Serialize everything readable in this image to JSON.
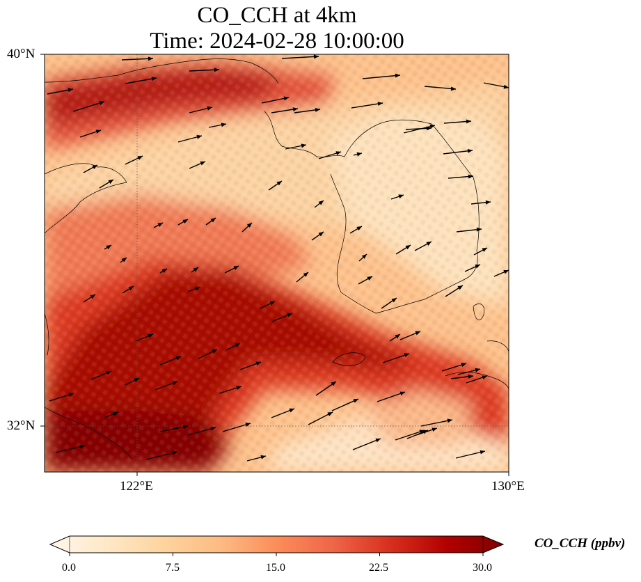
{
  "title": {
    "line1": "CO_CCH at 4km",
    "line2": "Time: 2024-02-28 10:00:00"
  },
  "map": {
    "extent": {
      "lon_min": 118,
      "lon_max": 130,
      "lat_min": 30.8,
      "lat_max": 40
    },
    "lat_ticks": [
      {
        "lat": 40,
        "label": "40°N"
      },
      {
        "lat": 32,
        "label": "32°N"
      }
    ],
    "lon_ticks": [
      {
        "lon": 122,
        "label": "122°E"
      },
      {
        "lon": 130,
        "label": "130°E"
      }
    ],
    "gridlines": "dotted at labelled ticks",
    "field": "CO_CCH concentration (ppbv)",
    "field_features": [
      {
        "name": "high band from southwest to southeast",
        "level": "high"
      },
      {
        "name": "northern band over Bohai region",
        "level": "high"
      },
      {
        "name": "Korean peninsula interior",
        "level": "low"
      }
    ],
    "wind_vectors": "arrows pointing predominantly east to northeast"
  },
  "colorbar": {
    "label": "CO_CCH (ppbv)",
    "min": 0.0,
    "max": 30.0,
    "extend": "both",
    "ticks": [
      "0.0",
      "7.5",
      "15.0",
      "22.5",
      "30.0"
    ],
    "colors": [
      "#fff7ec",
      "#fee8c8",
      "#fdd49e",
      "#fdbb84",
      "#fc8d59",
      "#ef6548",
      "#d7301f",
      "#b30000",
      "#7f0000"
    ]
  }
}
